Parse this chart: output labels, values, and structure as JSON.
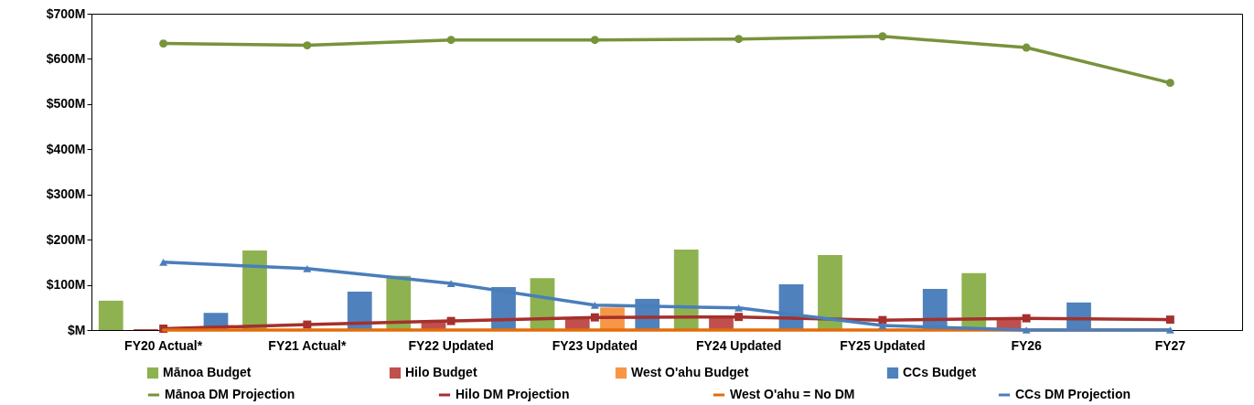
{
  "chart_data": {
    "type": "bar",
    "categories": [
      "FY20 Actual*",
      "FY21 Actual*",
      "FY22 Updated",
      "FY23 Updated",
      "FY24 Updated",
      "FY25 Updated",
      "FY26",
      "FY27"
    ],
    "series": [
      {
        "name": "Mānoa Budget",
        "type": "bar",
        "color": "#8eb24f",
        "values": [
          65,
          176,
          120,
          115,
          178,
          166,
          126,
          null
        ]
      },
      {
        "name": "Hilo Budget",
        "type": "bar",
        "color": "#c0504d",
        "values": [
          2,
          null,
          22,
          28,
          28,
          null,
          26,
          null
        ]
      },
      {
        "name": "West O'ahu Budget",
        "type": "bar",
        "color": "#f79646",
        "values": [
          0,
          0,
          0,
          50,
          null,
          null,
          null,
          null
        ]
      },
      {
        "name": "CCs Budget",
        "type": "bar",
        "color": "#4f81bd",
        "values": [
          38,
          85,
          95,
          69,
          101,
          91,
          61,
          null
        ]
      },
      {
        "name": "Mānoa DM Projection",
        "type": "line",
        "marker": "circle",
        "color": "#77933c",
        "values": [
          634,
          630,
          642,
          642,
          644,
          650,
          625,
          547
        ]
      },
      {
        "name": "Hilo DM Projection",
        "type": "line",
        "marker": "square",
        "color": "#a5302c",
        "values": [
          3,
          12,
          20,
          28,
          29,
          22,
          26,
          23
        ]
      },
      {
        "name": "West O'ahu = No DM",
        "type": "line",
        "marker": "none",
        "color": "#e46c0a",
        "values": [
          0,
          0,
          0,
          0,
          0,
          0,
          0,
          0
        ]
      },
      {
        "name": "CCs DM Projection",
        "type": "line",
        "marker": "triangle",
        "color": "#4a7ebb",
        "values": [
          150,
          136,
          103,
          55,
          49,
          10,
          0,
          0
        ]
      }
    ],
    "ylim": [
      0,
      700
    ],
    "yticks": [
      {
        "value": 0,
        "label": "$M"
      },
      {
        "value": 100,
        "label": "$100M"
      },
      {
        "value": 200,
        "label": "$200M"
      },
      {
        "value": 300,
        "label": "$300M"
      },
      {
        "value": 400,
        "label": "$400M"
      },
      {
        "value": 500,
        "label": "$500M"
      },
      {
        "value": 600,
        "label": "$600M"
      },
      {
        "value": 700,
        "label": "$700M"
      }
    ],
    "grid": false,
    "legend": "bottom"
  }
}
